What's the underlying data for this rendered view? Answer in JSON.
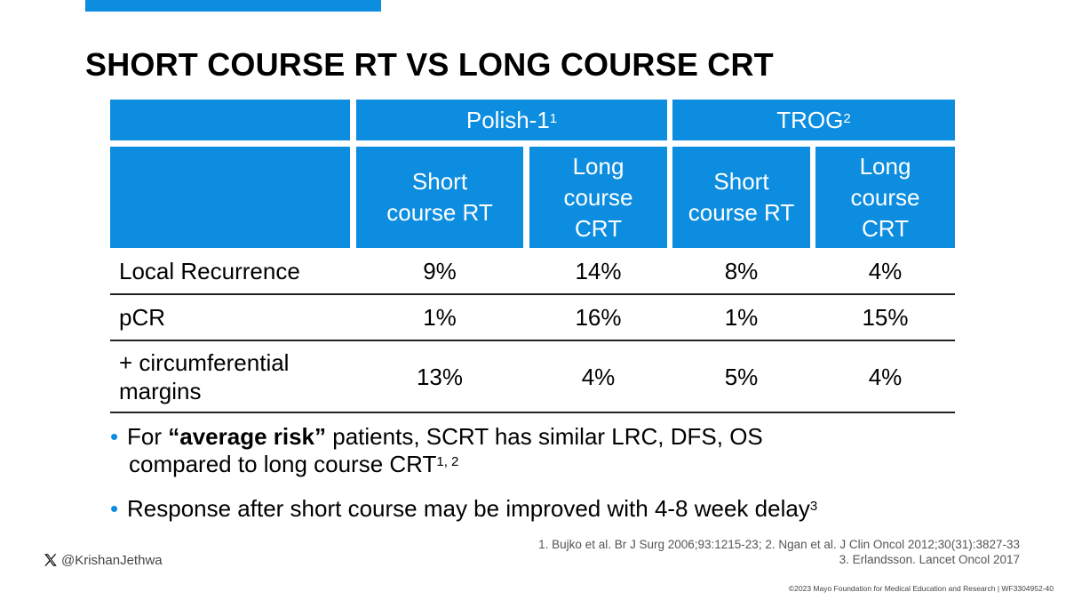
{
  "slide": {
    "title": "SHORT COURSE RT VS LONG COURSE CRT",
    "table": {
      "groups": [
        {
          "name": "Polish-1",
          "ref": "1"
        },
        {
          "name": "TROG",
          "ref": "2"
        }
      ],
      "arms": [
        {
          "line1": "Short",
          "line2": "course RT"
        },
        {
          "line1": "Long",
          "line2": "course",
          "line3": "CRT"
        },
        {
          "line1": "Short",
          "line2": "course RT"
        },
        {
          "line1": "Long",
          "line2": "course",
          "line3": "CRT"
        }
      ],
      "rows": [
        {
          "line1": "Local Recurrence",
          "values": [
            "9%",
            "14%",
            "8%",
            "4%"
          ]
        },
        {
          "line1": "pCR",
          "values": [
            "1%",
            "16%",
            "1%",
            "15%"
          ]
        },
        {
          "line1": "+ circumferential",
          "line2": "margins",
          "values": [
            "13%",
            "4%",
            "5%",
            "4%"
          ]
        }
      ]
    },
    "bullets": [
      {
        "pre": "For ",
        "bold": "“average risk”",
        "post": " patients, SCRT has similar LRC, DFS, OS",
        "line2": "compared to long course CRT",
        "sup": "1, 2"
      },
      {
        "text": "Response after short course may be improved with 4-8 week delay",
        "sup": "3"
      }
    ],
    "references": [
      "1. Bujko et al. Br J Surg 2006;93:1215-23; 2. Ngan et al. J Clin Oncol 2012;30(31):3827-33",
      "3. Erlandsson. Lancet Oncol 2017"
    ],
    "handle": "@KrishanJethwa",
    "copyright": "©2023 Mayo Foundation for Medical Education and Research  |  WF3304952-40",
    "colors": {
      "accent": "#0c8de0"
    }
  }
}
